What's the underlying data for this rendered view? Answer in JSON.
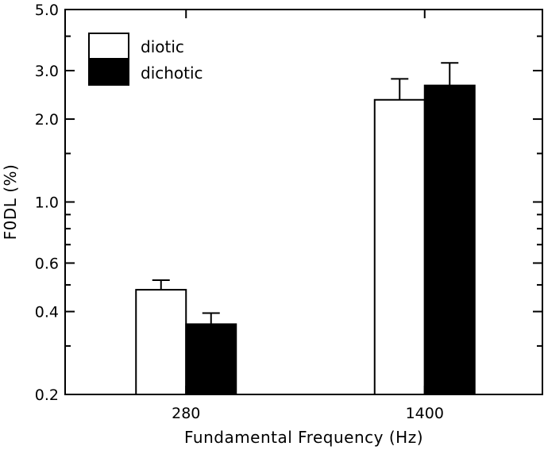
{
  "chart_data": {
    "type": "bar",
    "categories": [
      "280",
      "1400"
    ],
    "series": [
      {
        "name": "diotic",
        "values": [
          0.48,
          2.35
        ],
        "errors": [
          0.04,
          0.45
        ],
        "color": "#ffffff"
      },
      {
        "name": "dichotic",
        "values": [
          0.36,
          2.65
        ],
        "errors": [
          0.035,
          0.55
        ],
        "color": "#000000"
      }
    ],
    "xlabel": "Fundamental Frequency (Hz)",
    "ylabel": "F0DL (%)",
    "ylim": [
      0.2,
      5.0
    ],
    "yscale": "log",
    "yticks": [
      {
        "value": 0.2,
        "label": "0.2"
      },
      {
        "value": 0.4,
        "label": "0.4"
      },
      {
        "value": 0.6,
        "label": "0.6"
      },
      {
        "value": 1.0,
        "label": "1.0"
      },
      {
        "value": 2.0,
        "label": "2.0"
      },
      {
        "value": 3.0,
        "label": "3.0"
      },
      {
        "value": 5.0,
        "label": "5.0"
      }
    ],
    "minor_yticks": [
      0.3,
      0.5,
      0.7,
      0.8,
      0.9,
      1.5,
      4.0
    ],
    "grid": false,
    "legend_position": "top-left"
  }
}
